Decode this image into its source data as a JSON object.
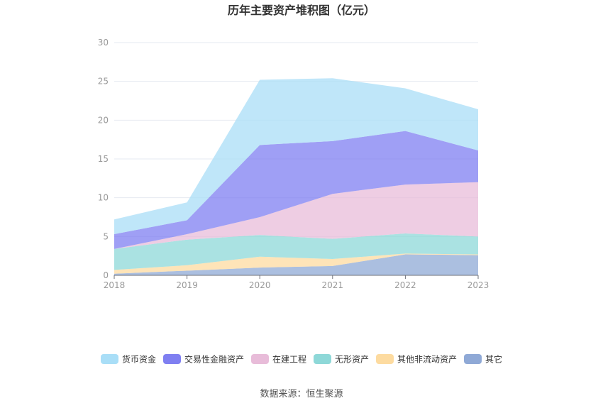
{
  "chart_data": {
    "type": "area",
    "stacked": true,
    "title": "历年主要资产堆积图（亿元）",
    "xlabel": "",
    "ylabel": "",
    "categories": [
      "2018",
      "2019",
      "2020",
      "2021",
      "2022",
      "2023"
    ],
    "ylim": [
      0,
      30
    ],
    "yticks": [
      0,
      5,
      10,
      15,
      20,
      25,
      30
    ],
    "grid": true,
    "legend_position": "bottom",
    "series": [
      {
        "name": "其它",
        "color": "#8fa9d6",
        "values": [
          0.2,
          0.6,
          1.0,
          1.2,
          2.7,
          2.6
        ]
      },
      {
        "name": "其他非流动资产",
        "color": "#fddba0",
        "values": [
          0.5,
          0.7,
          1.4,
          0.9,
          0.1,
          0.1
        ]
      },
      {
        "name": "无形资产",
        "color": "#8ed8d8",
        "values": [
          2.7,
          3.3,
          2.8,
          2.6,
          2.6,
          2.3
        ]
      },
      {
        "name": "在建工程",
        "color": "#e8bcd9",
        "values": [
          0.0,
          0.7,
          2.3,
          5.8,
          6.3,
          7.0
        ]
      },
      {
        "name": "交易性金融资产",
        "color": "#7f7ff1",
        "values": [
          1.9,
          1.8,
          9.3,
          6.8,
          6.9,
          4.1
        ]
      },
      {
        "name": "货币资金",
        "color": "#a9def7",
        "values": [
          1.9,
          2.3,
          8.4,
          8.1,
          5.5,
          5.3
        ]
      }
    ],
    "legend_order": [
      "货币资金",
      "交易性金融资产",
      "在建工程",
      "无形资产",
      "其他非流动资产",
      "其它"
    ],
    "source": "数据来源：恒生聚源"
  }
}
